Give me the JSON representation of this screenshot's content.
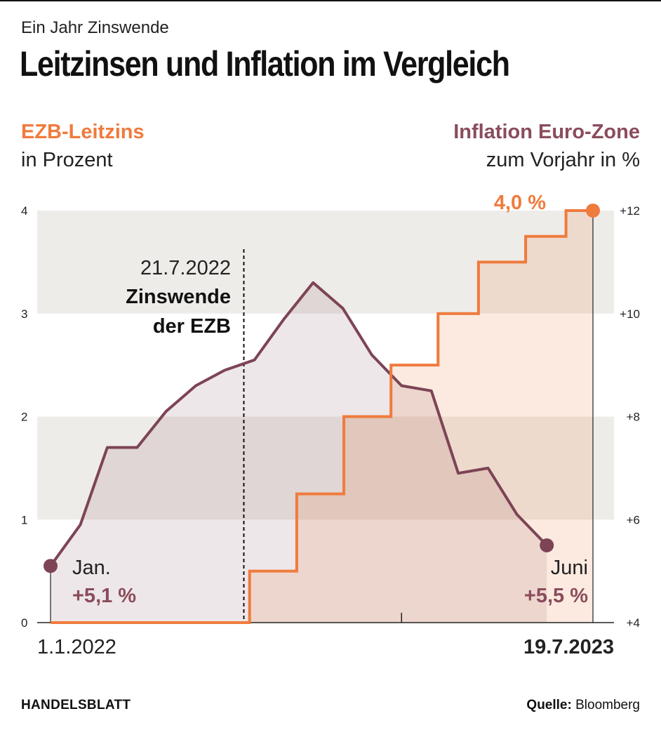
{
  "header": {
    "kicker": "Ein Jahr Zinswende",
    "title": "Leitzinsen und Inflation im Vergleich"
  },
  "legend": {
    "left_series": "EZB-Leitzins",
    "left_unit": "in Prozent",
    "right_series": "Inflation Euro-Zone",
    "right_unit": "zum Vorjahr in %"
  },
  "colors": {
    "leitzins": "#ef7b3d",
    "inflation": "#7d4455",
    "band": "#eeece9"
  },
  "annotations": {
    "event_date": "21.7.2022",
    "event_line1": "Zinswende",
    "event_line2": "der EZB",
    "start_month": "Jan.",
    "start_value": "+5,1 %",
    "end_month": "Juni",
    "end_value": "+5,5 %",
    "end_rate": "4,0 %",
    "x_start": "1.1.2022",
    "x_end": "19.7.2023"
  },
  "footer": {
    "brand": "HANDELSBLATT",
    "source_label": "Quelle:",
    "source_value": "Bloomberg"
  },
  "chart_data": {
    "type": "line",
    "x_range": [
      "2022-01-01",
      "2023-07-19"
    ],
    "y_left": {
      "label": "EZB-Leitzins in Prozent",
      "range": [
        0,
        4
      ],
      "ticks": [
        0,
        1,
        2,
        3,
        4
      ]
    },
    "y_right": {
      "label": "Inflation Euro-Zone zum Vorjahr in %",
      "range": [
        4,
        12
      ],
      "ticks": [
        "+4",
        "+6",
        "+8",
        "+10",
        "+12"
      ]
    },
    "series": [
      {
        "name": "EZB-Leitzins",
        "axis": "left",
        "step": true,
        "points": [
          [
            "2022-01-01",
            0.0
          ],
          [
            "2022-07-27",
            0.5
          ],
          [
            "2022-09-14",
            1.25
          ],
          [
            "2022-11-02",
            2.0
          ],
          [
            "2022-12-21",
            2.5
          ],
          [
            "2023-02-08",
            3.0
          ],
          [
            "2023-03-22",
            3.5
          ],
          [
            "2023-05-10",
            3.75
          ],
          [
            "2023-06-21",
            4.0
          ],
          [
            "2023-07-19",
            4.0
          ]
        ]
      },
      {
        "name": "Inflation Euro-Zone",
        "axis": "right",
        "points": [
          [
            "2022-01-01",
            5.1
          ],
          [
            "2022-02-01",
            5.9
          ],
          [
            "2022-03-01",
            7.4
          ],
          [
            "2022-04-01",
            7.4
          ],
          [
            "2022-05-01",
            8.1
          ],
          [
            "2022-06-01",
            8.6
          ],
          [
            "2022-07-01",
            8.9
          ],
          [
            "2022-08-01",
            9.1
          ],
          [
            "2022-09-01",
            9.9
          ],
          [
            "2022-10-01",
            10.6
          ],
          [
            "2022-11-01",
            10.1
          ],
          [
            "2022-12-01",
            9.2
          ],
          [
            "2023-01-01",
            8.6
          ],
          [
            "2023-02-01",
            8.5
          ],
          [
            "2023-03-01",
            6.9
          ],
          [
            "2023-04-01",
            7.0
          ],
          [
            "2023-05-01",
            6.1
          ],
          [
            "2023-06-01",
            5.5
          ]
        ]
      }
    ],
    "markers": [
      {
        "date": "2022-07-21",
        "label": "Zinswende der EZB"
      }
    ]
  }
}
